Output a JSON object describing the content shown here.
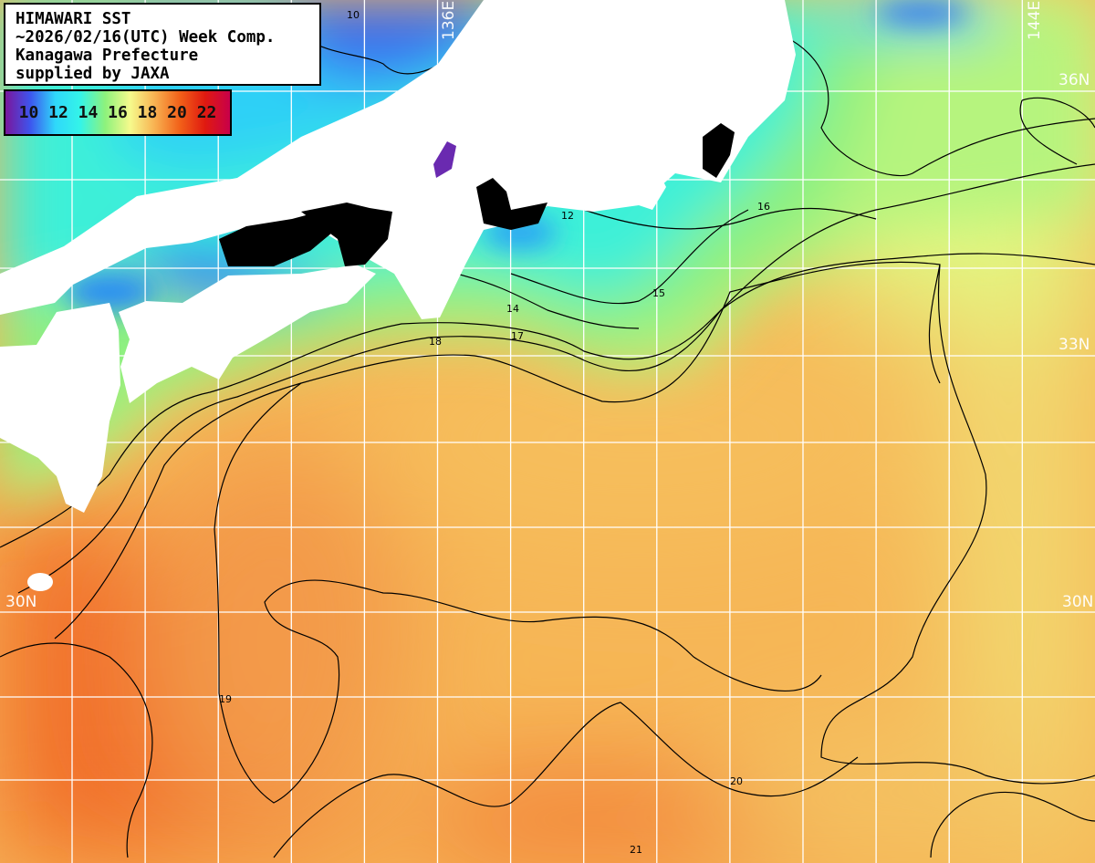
{
  "title": {
    "lines": [
      "HIMAWARI SST",
      "~2026/02/16(UTC) Week Comp.",
      "Kanagawa Prefecture",
      "supplied by JAXA"
    ]
  },
  "legend": {
    "labels": "10 12 14 16 18 20 22",
    "ticks": [
      10,
      12,
      14,
      16,
      18,
      20,
      22
    ],
    "gradient_colors": [
      "#7a169c",
      "#3d56ee",
      "#2fd8fa",
      "#34f4e8",
      "#8ef27c",
      "#f6fa8c",
      "#f8b050",
      "#f26018",
      "#e01a10",
      "#c8004a"
    ]
  },
  "grid": {
    "lon_labels": [
      "136E",
      "144E"
    ],
    "lat_labels_right": [
      "36N",
      "33N",
      "30N"
    ],
    "lat_labels_left": [
      "30N"
    ]
  },
  "contours": {
    "labels": [
      "10",
      "12",
      "14",
      "15",
      "16",
      "17",
      "18",
      "19",
      "20",
      "21"
    ]
  },
  "colors": {
    "land": "#ffffff",
    "no_data": "#000000",
    "grid": "#ffffff",
    "contour": "#000000"
  }
}
